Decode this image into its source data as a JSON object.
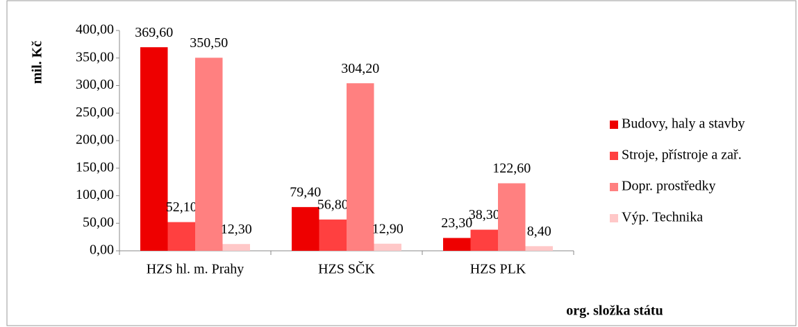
{
  "chart_data": {
    "type": "bar",
    "y_label": "mil. Kč",
    "x_label": "org. složka státu",
    "categories": [
      "HZS hl. m. Prahy",
      "HZS SČK",
      "HZS PLK"
    ],
    "series": [
      {
        "name": "Budovy, haly a stavby",
        "color": "#ee0000",
        "values": [
          369.6,
          79.4,
          23.3
        ],
        "value_labels": [
          "369,60",
          "79,40",
          "23,30"
        ]
      },
      {
        "name": "Stroje, přístroje a zař.",
        "color": "#ff4040",
        "values": [
          52.1,
          56.8,
          38.3
        ],
        "value_labels": [
          "52,10",
          "56,80",
          "38,30"
        ]
      },
      {
        "name": "Dopr. prostředky",
        "color": "#ff8080",
        "values": [
          350.5,
          304.2,
          122.6
        ],
        "value_labels": [
          "350,50",
          "304,20",
          "122,60"
        ]
      },
      {
        "name": "Výp. Technika",
        "color": "#ffc8c8",
        "values": [
          12.3,
          12.9,
          8.4
        ],
        "value_labels": [
          "12,30",
          "12,90",
          "8,40"
        ]
      }
    ],
    "ylim": [
      0,
      400
    ],
    "yticks": [
      {
        "value": 0,
        "label": "0,00"
      },
      {
        "value": 50,
        "label": "50,00"
      },
      {
        "value": 100,
        "label": "100,00"
      },
      {
        "value": 150,
        "label": "150,00"
      },
      {
        "value": 200,
        "label": "200,00"
      },
      {
        "value": 250,
        "label": "250,00"
      },
      {
        "value": 300,
        "label": "300,00"
      },
      {
        "value": 350,
        "label": "350,00"
      },
      {
        "value": 400,
        "label": "400,00"
      }
    ],
    "legend": "right"
  }
}
